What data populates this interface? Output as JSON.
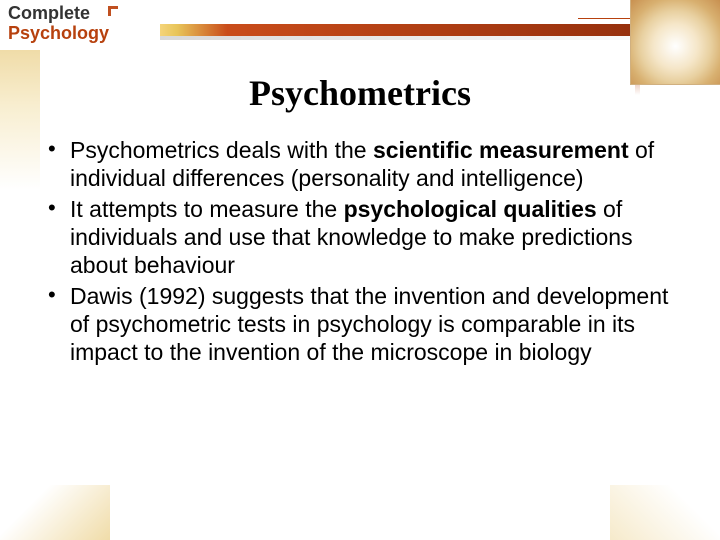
{
  "logo": {
    "line1": "Complete",
    "line2": "Psychology"
  },
  "title": "Psychometrics",
  "bullets": [
    {
      "pre": "Psychometrics deals with the ",
      "bold": "scientific measurement",
      "post": " of individual differences (personality and intelligence)"
    },
    {
      "pre": "It attempts to measure the ",
      "bold": "psychological qualities",
      "post": " of individuals and use that knowledge to make predictions about behaviour"
    },
    {
      "pre": "Dawis (1992) suggests that the invention and development of psychometric tests in psychology is comparable in its impact to the invention of the microscope in biology",
      "bold": "",
      "post": ""
    }
  ],
  "colors": {
    "brand_dark": "#333333",
    "brand_accent": "#b7410e",
    "ribbon_start": "#f5d47a",
    "ribbon_end": "#8b2a0a",
    "background": "#ffffff"
  }
}
